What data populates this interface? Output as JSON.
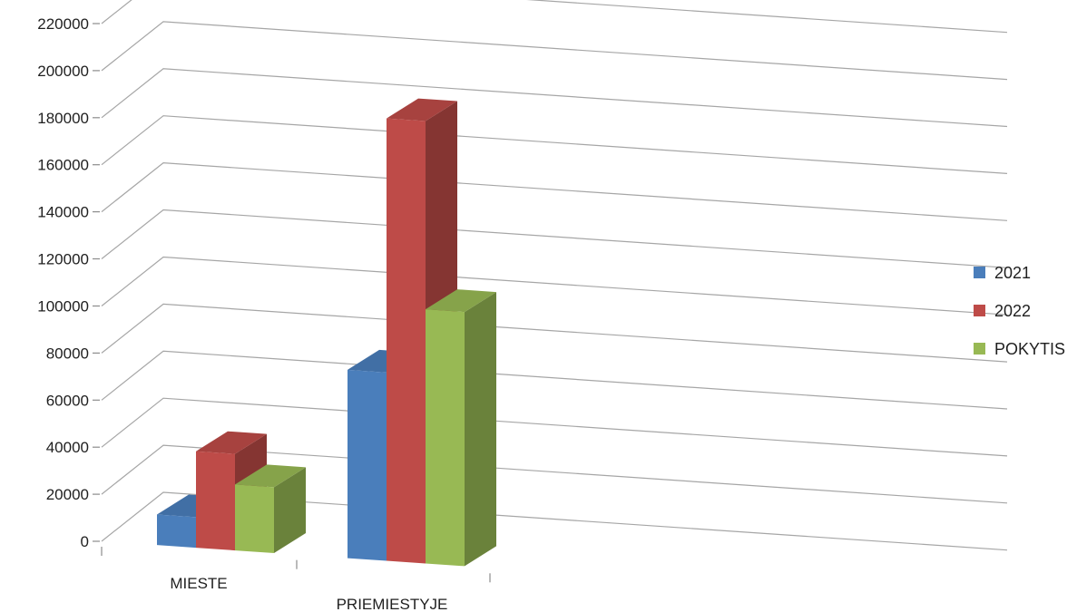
{
  "chart_data": {
    "type": "bar",
    "title": "",
    "xlabel": "",
    "ylabel": "",
    "categories": [
      "MIESTE",
      "PRIEMIESTYJE"
    ],
    "series": [
      {
        "name": "2021",
        "values": [
          13000,
          80000
        ],
        "color": "#4a7ebb"
      },
      {
        "name": "2022",
        "values": [
          41000,
          188000
        ],
        "color": "#be4b48"
      },
      {
        "name": "POKYTIS",
        "values": [
          28000,
          108000
        ],
        "color": "#98b954"
      }
    ],
    "ylim": [
      0,
      220000
    ],
    "yticks": [
      0,
      20000,
      40000,
      60000,
      80000,
      100000,
      120000,
      140000,
      160000,
      180000,
      200000,
      220000
    ],
    "ytick_labels": [
      "0",
      "20000",
      "40000",
      "60000",
      "80000",
      "100000",
      "120000",
      "140000",
      "160000",
      "180000",
      "200000",
      "220000"
    ],
    "grid": true,
    "legend_position": "right",
    "style": "3d-column"
  }
}
